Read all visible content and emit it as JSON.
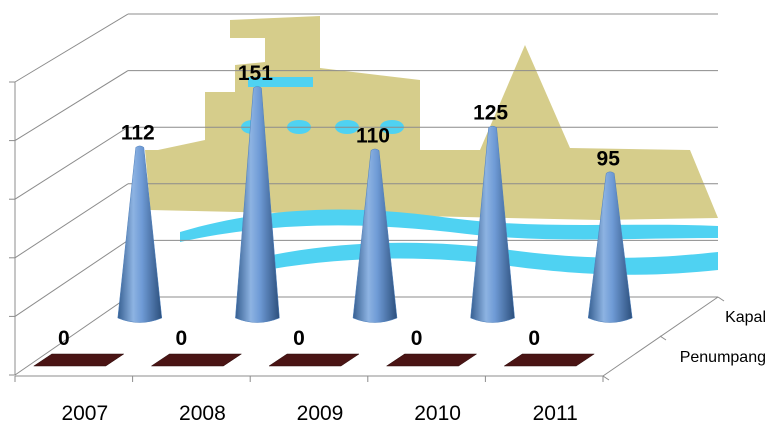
{
  "chart_data": {
    "type": "bar",
    "categories": [
      "2007",
      "2008",
      "2009",
      "2010",
      "2011"
    ],
    "series": [
      {
        "name": "Kapal",
        "values": [
          112,
          151,
          110,
          125,
          95
        ]
      },
      {
        "name": "Penumpang",
        "values": [
          0,
          0,
          0,
          0,
          0
        ]
      }
    ],
    "title": "",
    "xlabel": "",
    "ylabel": "",
    "ylim": [
      0,
      175
    ],
    "grid": true,
    "data_labels": true,
    "colors": {
      "Kapal": "#4f81bd",
      "Penumpang": "#4a1414",
      "ship_background": "#d6cd8b",
      "waves": "#4fd2f2"
    }
  }
}
